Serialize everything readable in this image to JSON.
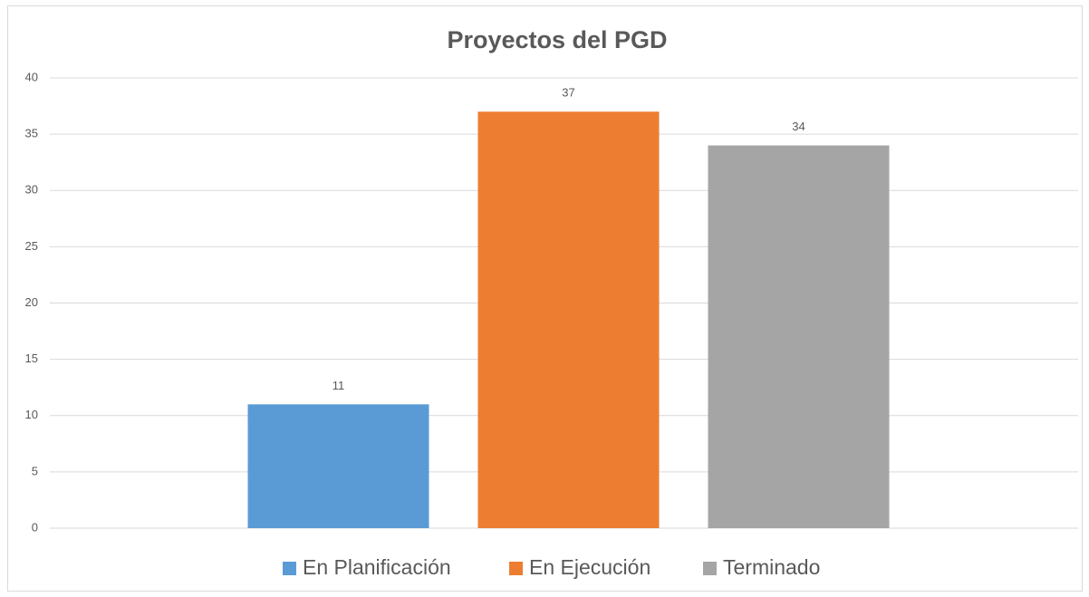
{
  "chart_data": {
    "type": "bar",
    "title": "Proyectos del PGD",
    "categories": [
      null
    ],
    "series": [
      {
        "name": "En Planificación",
        "color": "#5b9bd5",
        "values": [
          11
        ]
      },
      {
        "name": "En Ejecución",
        "color": "#ed7d31",
        "values": [
          37
        ]
      },
      {
        "name": "Terminado",
        "color": "#a5a5a5",
        "values": [
          34
        ]
      }
    ],
    "ylim": [
      0,
      40
    ],
    "yticks": [
      0,
      5,
      10,
      15,
      20,
      25,
      30,
      35,
      40
    ],
    "grid": true,
    "legend": "bottom"
  }
}
